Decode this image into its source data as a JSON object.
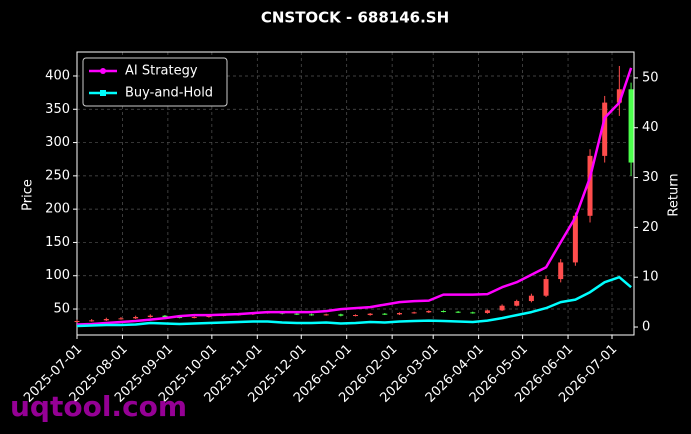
{
  "chart_data": {
    "type": "candlestick",
    "title": "CNSTOCK - 688146.SH",
    "ylabel": "Price",
    "y2label": "Return",
    "watermark": "uqtool.com",
    "x": [
      "2025-07-01",
      "2025-07-11",
      "2025-07-21",
      "2025-07-31",
      "2025-08-10",
      "2025-08-20",
      "2025-08-30",
      "2025-09-09",
      "2025-09-19",
      "2025-09-29",
      "2025-10-09",
      "2025-10-19",
      "2025-10-29",
      "2025-11-08",
      "2025-11-18",
      "2025-11-28",
      "2025-12-08",
      "2025-12-18",
      "2025-12-28",
      "2026-01-07",
      "2026-01-17",
      "2026-01-27",
      "2026-02-06",
      "2026-02-16",
      "2026-02-26",
      "2026-03-08",
      "2026-03-18",
      "2026-03-28",
      "2026-04-07",
      "2026-04-17",
      "2026-04-27",
      "2026-05-07",
      "2026-05-17",
      "2026-05-27",
      "2026-06-06",
      "2026-06-16",
      "2026-06-26",
      "2026-07-06",
      "2026-07-14"
    ],
    "candles": {
      "open": [
        31,
        32,
        33,
        35,
        36,
        38,
        40,
        38,
        37,
        38,
        40,
        41,
        42,
        44,
        45,
        43,
        42,
        41,
        42,
        40,
        41,
        43,
        42,
        44,
        45,
        47,
        46,
        45,
        44,
        48,
        55,
        62,
        70,
        95,
        120,
        190,
        280,
        360,
        380
      ],
      "high": [
        34,
        35,
        37,
        38,
        40,
        42,
        41,
        39,
        39,
        41,
        42,
        43,
        45,
        47,
        46,
        44,
        43,
        43,
        43,
        42,
        44,
        44,
        45,
        46,
        48,
        48,
        47,
        46,
        49,
        57,
        64,
        73,
        100,
        125,
        195,
        290,
        370,
        415,
        390
      ],
      "low": [
        30,
        31,
        32,
        34,
        35,
        37,
        37,
        36,
        36,
        37,
        39,
        40,
        41,
        43,
        42,
        41,
        40,
        40,
        39,
        39,
        40,
        41,
        41,
        43,
        44,
        45,
        44,
        43,
        43,
        47,
        54,
        60,
        68,
        90,
        115,
        180,
        270,
        340,
        250
      ],
      "close": [
        32,
        33,
        35,
        36,
        38,
        40,
        38,
        37,
        38,
        40,
        41,
        42,
        44,
        45,
        43,
        42,
        41,
        42,
        40,
        41,
        43,
        42,
        44,
        45,
        47,
        46,
        45,
        44,
        48,
        55,
        62,
        70,
        95,
        120,
        190,
        280,
        360,
        380,
        270
      ]
    },
    "up_color": "#ff4d4d",
    "down_color": "#4cff4c",
    "series": [
      {
        "name": "AI Strategy",
        "color": "#ff00ff",
        "axis": "y2",
        "values": [
          0.5,
          0.6,
          0.8,
          1.0,
          1.2,
          1.5,
          1.8,
          2.2,
          2.4,
          2.4,
          2.5,
          2.6,
          2.8,
          3.0,
          3.0,
          3.0,
          3.0,
          3.2,
          3.6,
          3.8,
          4.0,
          4.5,
          5.0,
          5.2,
          5.3,
          6.5,
          6.5,
          6.5,
          6.6,
          8.0,
          9.0,
          10.5,
          12.0,
          17.0,
          22.0,
          30.0,
          42.0,
          45.0,
          52.0
        ]
      },
      {
        "name": "Buy-and-Hold",
        "color": "#00ffff",
        "axis": "y2",
        "values": [
          0.2,
          0.3,
          0.4,
          0.4,
          0.5,
          0.8,
          0.7,
          0.6,
          0.7,
          0.8,
          0.9,
          1.0,
          1.1,
          1.1,
          0.9,
          0.8,
          0.8,
          0.9,
          0.7,
          0.8,
          1.0,
          0.9,
          1.1,
          1.2,
          1.3,
          1.2,
          1.1,
          1.0,
          1.3,
          1.8,
          2.4,
          3.0,
          3.8,
          5.0,
          5.5,
          7.0,
          9.0,
          10.0,
          8.0
        ]
      }
    ],
    "xlim": [
      "2025-07-01",
      "2026-07-16"
    ],
    "xticks": [
      "2025-07-01",
      "2025-08-01",
      "2025-09-01",
      "2025-10-01",
      "2025-11-01",
      "2025-12-01",
      "2026-01-01",
      "2026-02-01",
      "2026-03-01",
      "2026-04-01",
      "2026-05-01",
      "2026-06-01",
      "2026-07-01"
    ],
    "ylim": [
      11,
      436
    ],
    "yticks": [
      50,
      100,
      150,
      200,
      250,
      300,
      350,
      400
    ],
    "y2lim": [
      -1.6,
      55.2
    ],
    "y2ticks": [
      0,
      10,
      20,
      30,
      40,
      50
    ],
    "grid": true,
    "legend": "upper left"
  }
}
